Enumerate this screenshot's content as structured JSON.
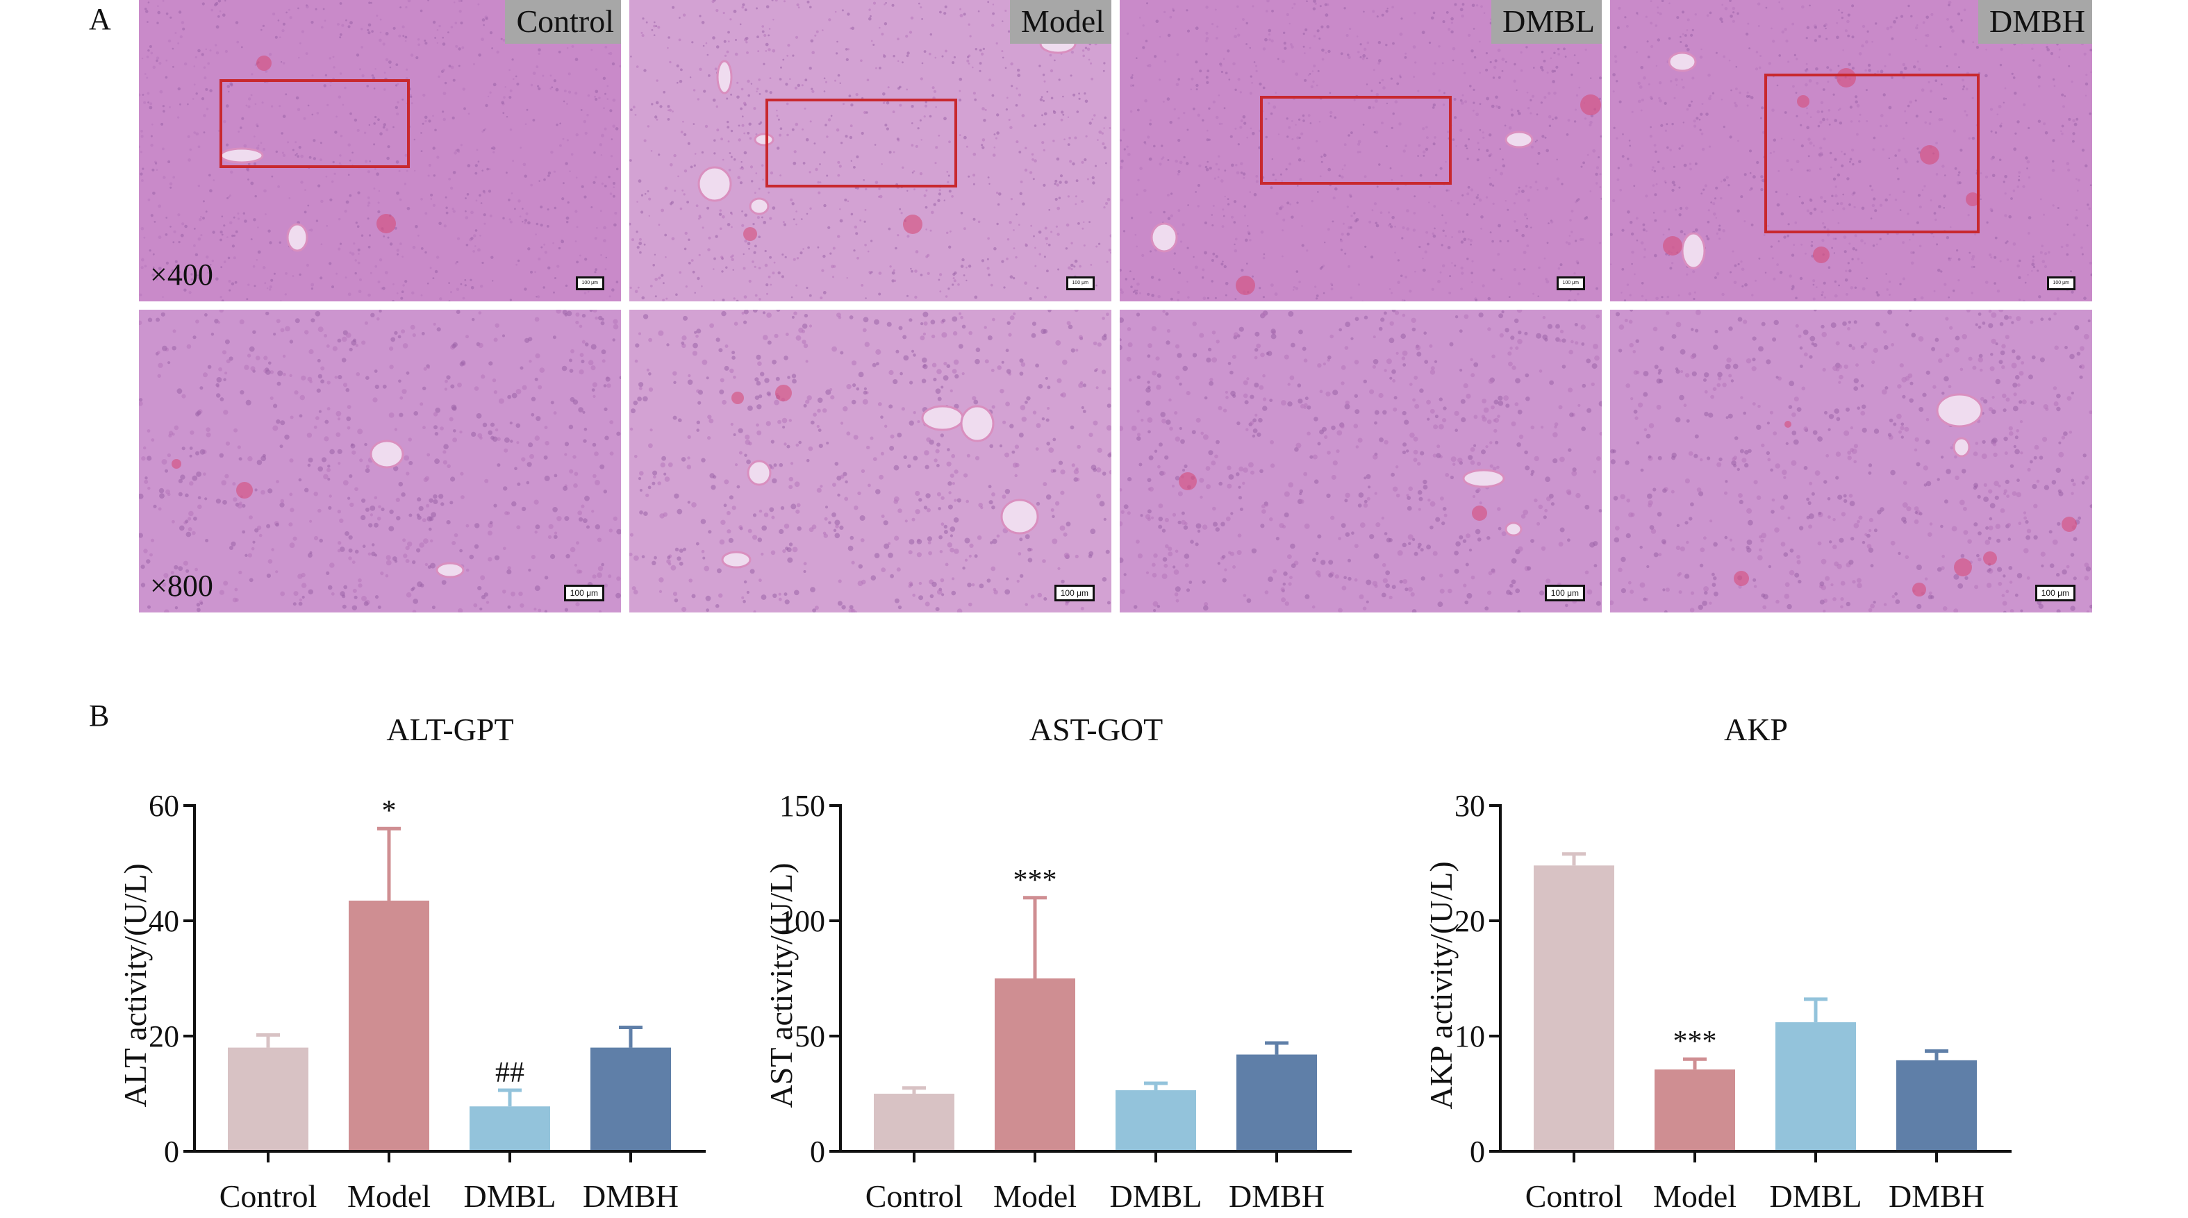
{
  "panel_a": {
    "letter": "A",
    "groups": [
      "Control",
      "Model",
      "DMBL",
      "DMBH"
    ],
    "magnifications": [
      "×400",
      "×800"
    ],
    "scale_bar_text": "100 μm",
    "colors": {
      "tissue": "#c98ac9",
      "tissue_dark": "#b676bc",
      "roi": "#c8282e",
      "label_bg": "#a7a7a7"
    }
  },
  "panel_b": {
    "letter": "B"
  },
  "chart_data": [
    {
      "type": "bar",
      "title": "ALT-GPT",
      "ylabel": "ALT activity/(U/L)",
      "categories": [
        "Control",
        "Model",
        "DMBL",
        "DMBH"
      ],
      "values": [
        18,
        43.5,
        7.8,
        18
      ],
      "errors": [
        2.2,
        12.5,
        2.8,
        3.5
      ],
      "annotations": [
        "",
        "*",
        "##",
        ""
      ],
      "ylim": [
        0,
        60
      ],
      "yticks": [
        0,
        20,
        40,
        60
      ],
      "colors": [
        "#d8c2c4",
        "#cf8e92",
        "#93c3db",
        "#5f7fa8"
      ]
    },
    {
      "type": "bar",
      "title": "AST-GOT",
      "ylabel": "AST activity/(U/L)",
      "categories": [
        "Control",
        "Model",
        "DMBL",
        "DMBH"
      ],
      "values": [
        25,
        75,
        26.5,
        42
      ],
      "errors": [
        2.5,
        35,
        3,
        5
      ],
      "annotations": [
        "",
        "***",
        "",
        ""
      ],
      "ylim": [
        0,
        150
      ],
      "yticks": [
        0,
        50,
        100,
        150
      ],
      "colors": [
        "#d8c2c4",
        "#cf8e92",
        "#93c3db",
        "#5f7fa8"
      ]
    },
    {
      "type": "bar",
      "title": "AKP",
      "ylabel": "AKP activity/(U/L)",
      "categories": [
        "Control",
        "Model",
        "DMBL",
        "DMBH"
      ],
      "values": [
        24.8,
        7.1,
        11.2,
        7.9
      ],
      "errors": [
        1,
        0.9,
        2,
        0.8
      ],
      "annotations": [
        "",
        "***",
        "",
        ""
      ],
      "ylim": [
        0,
        30
      ],
      "yticks": [
        0,
        10,
        20,
        30
      ],
      "colors": [
        "#d8c2c4",
        "#cf8e92",
        "#93c3db",
        "#5f7fa8"
      ]
    }
  ]
}
